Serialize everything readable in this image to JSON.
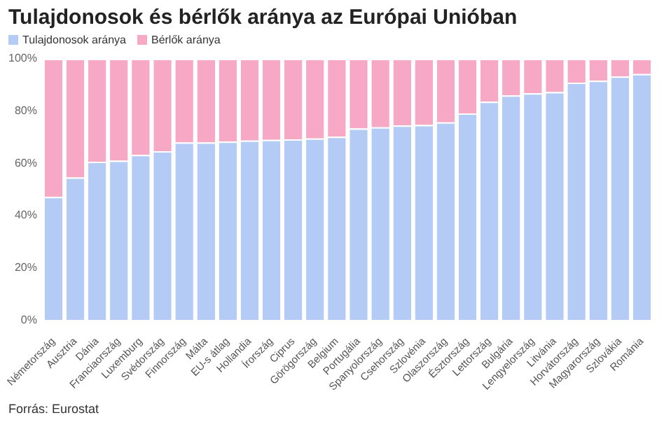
{
  "chart_data": {
    "type": "bar",
    "title": "Tulajdonosok és bérlők aránya az Európai Unióban",
    "stacked": true,
    "legend": "top left",
    "grid": false,
    "categories": [
      "Németország",
      "Ausztria",
      "Dánia",
      "Franciaország",
      "Luxemburg",
      "Svédország",
      "Finnország",
      "Málta",
      "EU-s átlag",
      "Hollandia",
      "Írország",
      "Ciprus",
      "Görögország",
      "Belgium",
      "Portugália",
      "Spanyolország",
      "Csehország",
      "Szlovénia",
      "Olaszország",
      "Észtország",
      "Lettország",
      "Bulgária",
      "Lengyelország",
      "Litvánia",
      "Horvátország",
      "Magyarország",
      "Szlovákia",
      "Románia"
    ],
    "series": [
      {
        "name": "Tulajdonosok aránya",
        "color": "#b3cbf5",
        "values": [
          47.1,
          54.6,
          60.6,
          61.0,
          63.2,
          64.6,
          68.0,
          68.0,
          68.3,
          68.7,
          69.0,
          69.2,
          69.5,
          70.2,
          73.3,
          73.8,
          74.5,
          74.7,
          75.7,
          79.1,
          83.6,
          86.0,
          86.8,
          87.3,
          90.9,
          91.6,
          93.2,
          94.2
        ]
      },
      {
        "name": "Bérlők aránya",
        "color": "#f7a8c4",
        "values": [
          52.9,
          45.4,
          39.4,
          39.0,
          36.8,
          35.4,
          32.0,
          32.0,
          31.7,
          31.3,
          31.0,
          30.8,
          30.5,
          29.8,
          26.7,
          26.2,
          25.5,
          25.3,
          24.3,
          20.9,
          16.4,
          14.0,
          13.2,
          12.7,
          9.1,
          8.4,
          6.8,
          5.8
        ]
      }
    ],
    "ylim": [
      0,
      100
    ],
    "yticks": [
      {
        "value": 0,
        "label": "0%"
      },
      {
        "value": 20,
        "label": "20%"
      },
      {
        "value": 40,
        "label": "40%"
      },
      {
        "value": 60,
        "label": "60%"
      },
      {
        "value": 80,
        "label": "80%"
      },
      {
        "value": 100,
        "label": "100%"
      }
    ],
    "annotations": [
      "Forrás: Eurostat"
    ]
  }
}
